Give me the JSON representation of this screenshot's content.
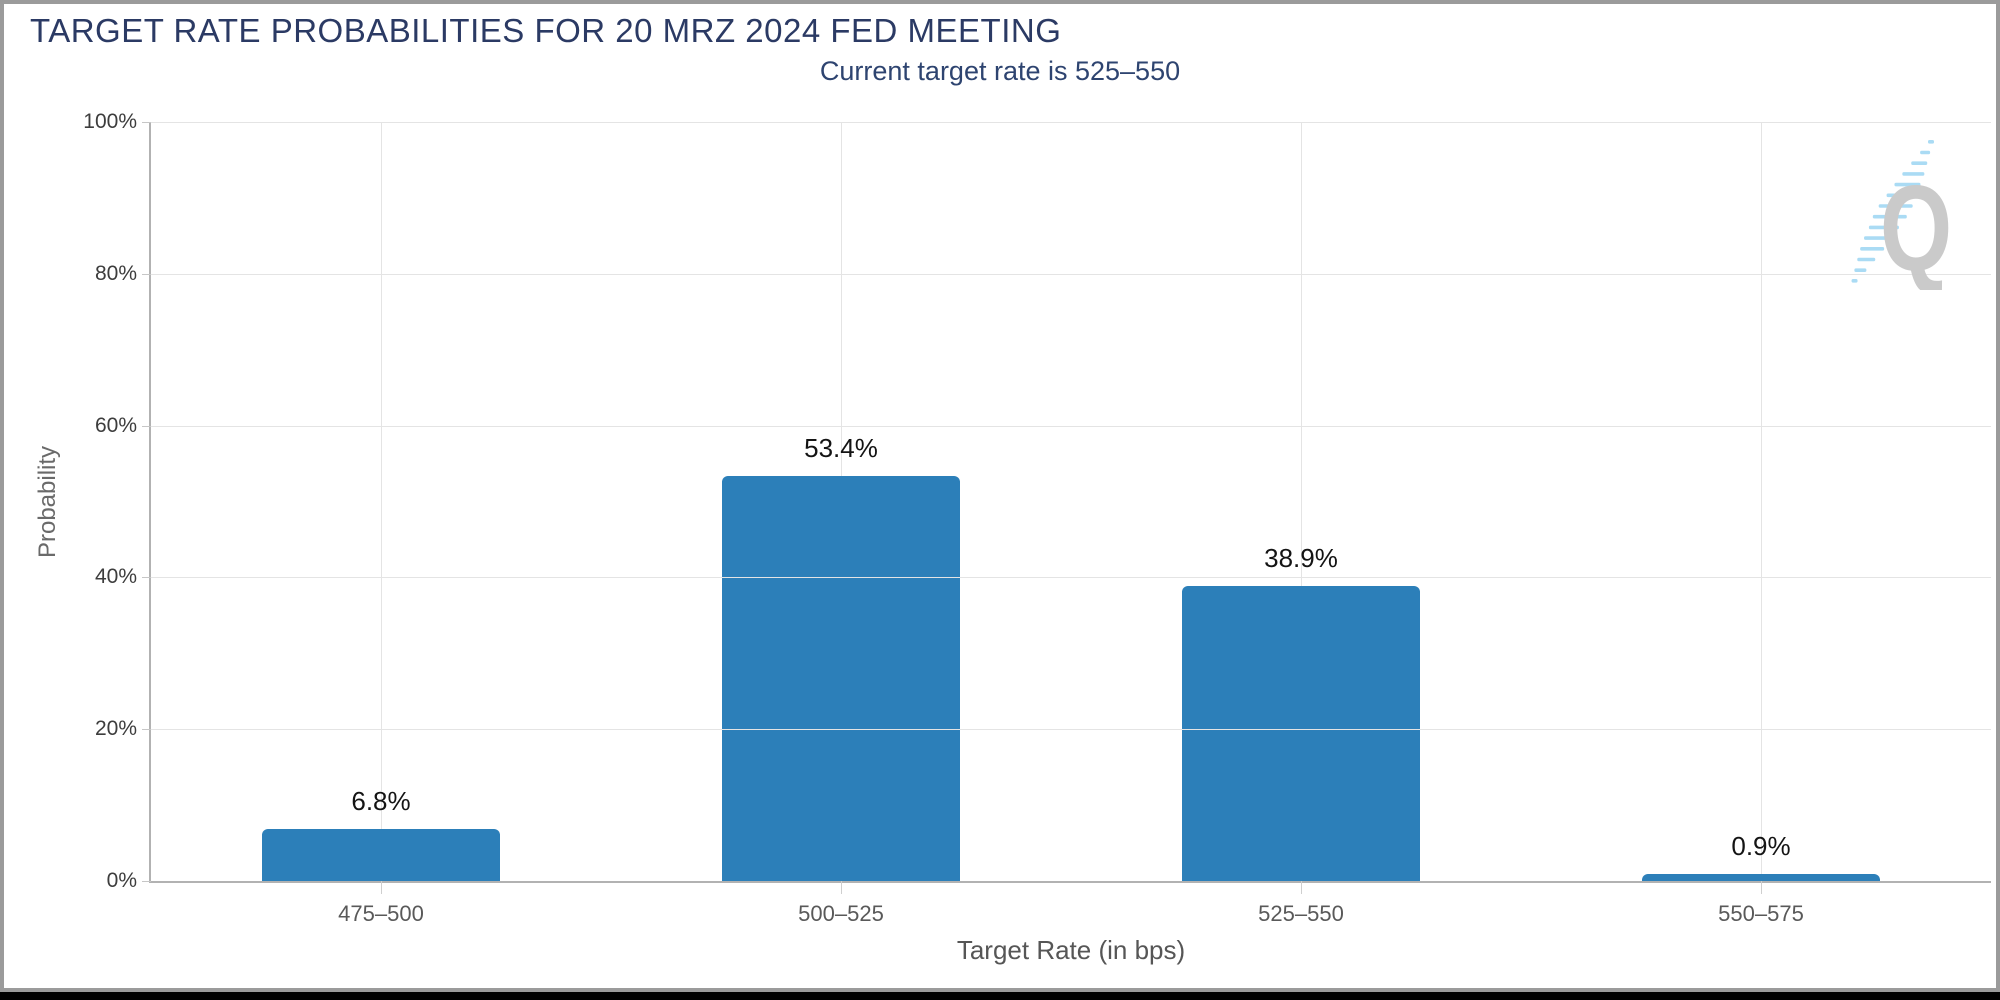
{
  "chart_data": {
    "type": "bar",
    "title": "TARGET RATE PROBABILITIES FOR 20 MRZ 2024 FED MEETING",
    "subtitle": "Current target rate is 525–550",
    "categories": [
      "475–500",
      "500–525",
      "525–550",
      "550–575"
    ],
    "values": [
      6.8,
      53.4,
      38.9,
      0.9
    ],
    "value_labels": [
      "6.8%",
      "53.4%",
      "38.9%",
      "0.9%"
    ],
    "xlabel": "Target Rate (in bps)",
    "ylabel": "Probability",
    "ylim": [
      0,
      100
    ],
    "yticks": [
      "0%",
      "20%",
      "40%",
      "60%",
      "80%",
      "100%"
    ],
    "grid": true,
    "legend": false,
    "bar_color": "#2c7fb9"
  },
  "watermark": {
    "letter": "Q"
  },
  "colors": {
    "title": "#2b3a64",
    "subtitle": "#2e4470",
    "bar": "#2c7fb9",
    "watermark_gray": "#c8c8c8",
    "watermark_blue": "#a6daf4",
    "frame_border": "#9b9b9b"
  }
}
